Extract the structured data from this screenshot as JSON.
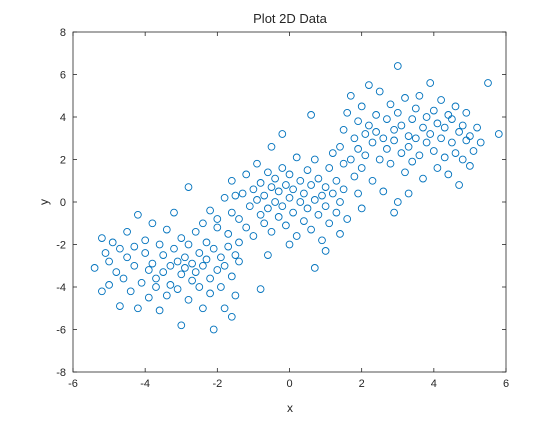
{
  "chart_data": {
    "type": "scatter",
    "title": "Plot 2D Data",
    "xlabel": "x",
    "ylabel": "y",
    "xlim": [
      -6,
      6
    ],
    "ylim": [
      -8,
      8
    ],
    "xticks": [
      -6,
      -4,
      -2,
      0,
      2,
      4,
      6
    ],
    "yticks": [
      -8,
      -6,
      -4,
      -2,
      0,
      2,
      4,
      6,
      8
    ],
    "xtick_labels": [
      "-6",
      "-4",
      "-2",
      "0",
      "2",
      "4",
      "6"
    ],
    "ytick_labels": [
      "-8",
      "-6",
      "-4",
      "-2",
      "0",
      "2",
      "4",
      "6",
      "8"
    ],
    "grid": false,
    "marker": "open-circle",
    "marker_color": "#0072bd",
    "axis_color": "#262626",
    "series": [
      {
        "points": [
          [
            -5.4,
            -3.1
          ],
          [
            -5.2,
            -1.7
          ],
          [
            -5.1,
            -2.4
          ],
          [
            -5.2,
            -4.2
          ],
          [
            -5.0,
            -3.9
          ],
          [
            -5.0,
            -2.8
          ],
          [
            -4.9,
            -1.9
          ],
          [
            -4.8,
            -3.3
          ],
          [
            -4.7,
            -2.2
          ],
          [
            -4.7,
            -4.9
          ],
          [
            -4.6,
            -3.6
          ],
          [
            -4.5,
            -2.6
          ],
          [
            -4.5,
            -1.4
          ],
          [
            -4.4,
            -4.2
          ],
          [
            -4.3,
            -3.0
          ],
          [
            -4.3,
            -2.1
          ],
          [
            -4.2,
            -0.6
          ],
          [
            -4.2,
            -5.0
          ],
          [
            -4.1,
            -3.8
          ],
          [
            -4.0,
            -2.4
          ],
          [
            -4.0,
            -1.8
          ],
          [
            -3.9,
            -4.5
          ],
          [
            -3.9,
            -3.2
          ],
          [
            -3.8,
            -2.9
          ],
          [
            -3.8,
            -1.0
          ],
          [
            -3.7,
            -3.6
          ],
          [
            -3.7,
            -4.0
          ],
          [
            -3.6,
            -2.0
          ],
          [
            -3.6,
            -5.1
          ],
          [
            -3.5,
            -3.3
          ],
          [
            -3.5,
            -2.5
          ],
          [
            -3.4,
            -1.3
          ],
          [
            -3.4,
            -4.4
          ],
          [
            -3.3,
            -3.0
          ],
          [
            -3.3,
            -3.9
          ],
          [
            -3.2,
            -2.2
          ],
          [
            -3.2,
            -0.5
          ],
          [
            -3.1,
            -2.8
          ],
          [
            -3.1,
            -4.1
          ],
          [
            -3.0,
            -3.4
          ],
          [
            -3.0,
            -1.7
          ],
          [
            -3.0,
            -5.8
          ],
          [
            -2.9,
            -2.6
          ],
          [
            -2.9,
            -3.1
          ],
          [
            -2.8,
            -4.6
          ],
          [
            -2.8,
            -2.0
          ],
          [
            -2.8,
            0.7
          ],
          [
            -2.7,
            -3.7
          ],
          [
            -2.7,
            -2.9
          ],
          [
            -2.6,
            -1.4
          ],
          [
            -2.6,
            -3.3
          ],
          [
            -2.5,
            -4.0
          ],
          [
            -2.5,
            -2.4
          ],
          [
            -2.4,
            -5.0
          ],
          [
            -2.4,
            -3.0
          ],
          [
            -2.3,
            -1.9
          ],
          [
            -2.3,
            -2.7
          ],
          [
            -2.2,
            -3.6
          ],
          [
            -2.2,
            -4.3
          ],
          [
            -2.1,
            -2.2
          ],
          [
            -2.1,
            -6.0
          ],
          [
            -2.0,
            -3.2
          ],
          [
            -2.0,
            -1.2
          ],
          [
            -1.9,
            -2.6
          ],
          [
            -1.9,
            -4.0
          ],
          [
            -1.8,
            -3.0
          ],
          [
            -1.8,
            -5.0
          ],
          [
            -1.7,
            -2.1
          ],
          [
            -1.7,
            -1.5
          ],
          [
            -1.6,
            -3.5
          ],
          [
            -1.6,
            -5.4
          ],
          [
            -1.5,
            -2.5
          ],
          [
            -1.5,
            -4.4
          ],
          [
            -1.4,
            -2.8
          ],
          [
            -1.6,
            -0.5
          ],
          [
            -1.5,
            0.3
          ],
          [
            -1.4,
            -1.9
          ],
          [
            -2.4,
            -1.0
          ],
          [
            -2.2,
            -0.4
          ],
          [
            -2.0,
            -0.8
          ],
          [
            -1.8,
            0.2
          ],
          [
            -1.6,
            1.0
          ],
          [
            -1.4,
            -0.8
          ],
          [
            -1.3,
            0.4
          ],
          [
            -1.2,
            -1.2
          ],
          [
            -1.2,
            1.3
          ],
          [
            -1.1,
            -0.2
          ],
          [
            -1.0,
            0.6
          ],
          [
            -1.0,
            -1.6
          ],
          [
            -0.9,
            0.1
          ],
          [
            -0.9,
            1.8
          ],
          [
            -0.8,
            -0.6
          ],
          [
            -0.8,
            0.9
          ],
          [
            -0.7,
            -1.0
          ],
          [
            -0.7,
            0.3
          ],
          [
            -0.6,
            1.4
          ],
          [
            -0.6,
            -0.3
          ],
          [
            -0.5,
            0.7
          ],
          [
            -0.5,
            -1.4
          ],
          [
            -0.5,
            2.6
          ],
          [
            -0.4,
            0.0
          ],
          [
            -0.4,
            1.1
          ],
          [
            -0.3,
            -0.7
          ],
          [
            -0.3,
            0.5
          ],
          [
            -0.2,
            1.6
          ],
          [
            -0.2,
            -0.2
          ],
          [
            -0.1,
            0.8
          ],
          [
            -0.1,
            -1.1
          ],
          [
            0.0,
            0.2
          ],
          [
            0.0,
            1.3
          ],
          [
            0.1,
            -0.5
          ],
          [
            0.1,
            0.6
          ],
          [
            0.2,
            -1.6
          ],
          [
            0.2,
            2.1
          ],
          [
            0.3,
            0.0
          ],
          [
            0.3,
            1.0
          ],
          [
            0.4,
            -0.9
          ],
          [
            0.4,
            0.4
          ],
          [
            0.5,
            1.5
          ],
          [
            0.5,
            -0.3
          ],
          [
            0.6,
            0.8
          ],
          [
            0.6,
            -1.3
          ],
          [
            0.6,
            4.1
          ],
          [
            0.7,
            0.1
          ],
          [
            0.7,
            2.0
          ],
          [
            0.8,
            -0.6
          ],
          [
            0.8,
            1.1
          ],
          [
            0.9,
            0.3
          ],
          [
            0.9,
            -1.8
          ],
          [
            1.0,
            0.7
          ],
          [
            1.0,
            -0.2
          ],
          [
            1.1,
            1.6
          ],
          [
            1.1,
            -1.0
          ],
          [
            1.2,
            0.4
          ],
          [
            1.2,
            2.3
          ],
          [
            1.3,
            -0.5
          ],
          [
            1.3,
            1.0
          ],
          [
            1.4,
            0.0
          ],
          [
            1.4,
            -1.5
          ],
          [
            1.5,
            1.8
          ],
          [
            1.5,
            0.6
          ],
          [
            1.6,
            -0.8
          ],
          [
            1.0,
            -2.3
          ],
          [
            -0.8,
            -4.1
          ],
          [
            -0.6,
            -2.5
          ],
          [
            0.7,
            -3.1
          ],
          [
            -0.2,
            3.2
          ],
          [
            0.0,
            -2.0
          ],
          [
            1.4,
            2.6
          ],
          [
            1.5,
            3.4
          ],
          [
            1.6,
            4.2
          ],
          [
            1.7,
            2.0
          ],
          [
            1.7,
            5.0
          ],
          [
            1.8,
            3.0
          ],
          [
            1.8,
            1.2
          ],
          [
            1.9,
            3.8
          ],
          [
            1.9,
            2.5
          ],
          [
            2.0,
            4.5
          ],
          [
            2.0,
            1.6
          ],
          [
            2.1,
            3.2
          ],
          [
            2.1,
            2.2
          ],
          [
            2.2,
            5.5
          ],
          [
            2.2,
            3.6
          ],
          [
            2.3,
            1.0
          ],
          [
            2.3,
            2.8
          ],
          [
            2.4,
            4.1
          ],
          [
            2.4,
            3.3
          ],
          [
            2.5,
            2.0
          ],
          [
            2.5,
            5.2
          ],
          [
            2.6,
            3.0
          ],
          [
            2.6,
            0.5
          ],
          [
            2.7,
            3.9
          ],
          [
            2.7,
            2.5
          ],
          [
            2.8,
            4.6
          ],
          [
            2.8,
            1.8
          ],
          [
            2.9,
            3.4
          ],
          [
            2.9,
            2.9
          ],
          [
            3.0,
            0.0
          ],
          [
            3.0,
            4.2
          ],
          [
            3.0,
            6.4
          ],
          [
            3.1,
            2.3
          ],
          [
            3.1,
            3.6
          ],
          [
            3.2,
            1.4
          ],
          [
            3.2,
            4.9
          ],
          [
            3.3,
            3.1
          ],
          [
            3.3,
            2.6
          ],
          [
            3.4,
            3.9
          ],
          [
            3.4,
            1.9
          ],
          [
            3.5,
            4.4
          ],
          [
            3.5,
            3.0
          ],
          [
            3.6,
            2.2
          ],
          [
            3.6,
            5.0
          ],
          [
            3.7,
            3.5
          ],
          [
            3.7,
            1.1
          ],
          [
            3.8,
            4.0
          ],
          [
            3.8,
            2.8
          ],
          [
            3.9,
            3.2
          ],
          [
            3.9,
            5.6
          ],
          [
            4.0,
            2.4
          ],
          [
            4.0,
            4.3
          ],
          [
            4.1,
            3.7
          ],
          [
            4.1,
            1.6
          ],
          [
            4.2,
            3.0
          ],
          [
            4.2,
            4.8
          ],
          [
            4.3,
            2.1
          ],
          [
            4.3,
            3.5
          ],
          [
            4.4,
            4.1
          ],
          [
            4.4,
            1.3
          ],
          [
            4.5,
            2.8
          ],
          [
            4.5,
            3.9
          ],
          [
            4.6,
            2.3
          ],
          [
            4.6,
            4.5
          ],
          [
            4.7,
            3.3
          ],
          [
            4.7,
            0.8
          ],
          [
            4.8,
            3.6
          ],
          [
            4.8,
            2.0
          ],
          [
            4.9,
            2.9
          ],
          [
            4.9,
            4.2
          ],
          [
            5.0,
            3.1
          ],
          [
            5.0,
            1.7
          ],
          [
            5.1,
            2.4
          ],
          [
            5.2,
            3.5
          ],
          [
            5.3,
            2.8
          ],
          [
            5.5,
            5.6
          ],
          [
            5.8,
            3.2
          ],
          [
            2.9,
            -0.5
          ],
          [
            3.3,
            0.4
          ],
          [
            2.0,
            -0.3
          ],
          [
            1.9,
            0.4
          ]
        ]
      }
    ]
  }
}
